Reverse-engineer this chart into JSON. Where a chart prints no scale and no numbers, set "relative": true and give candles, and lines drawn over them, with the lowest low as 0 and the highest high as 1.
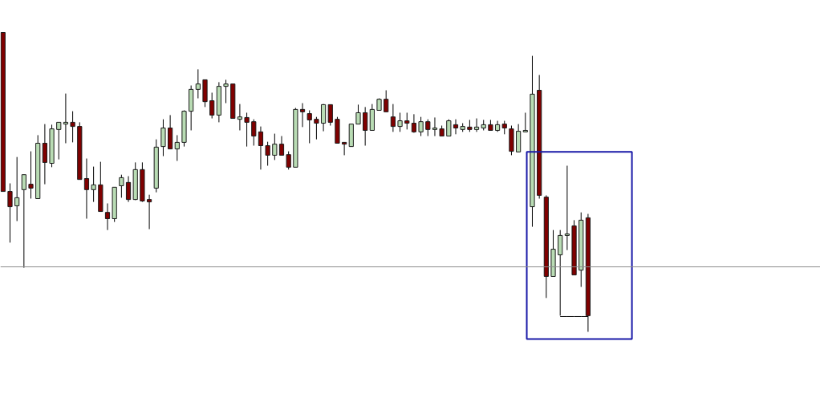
{
  "chart_data": {
    "type": "candlestick",
    "relative": true,
    "categories": [
      null,
      null,
      null,
      null,
      null,
      null,
      null,
      null,
      null,
      null,
      null,
      null,
      null,
      null,
      null,
      null,
      null,
      null,
      null,
      null,
      null,
      null,
      null,
      null,
      null,
      null,
      null,
      null,
      null,
      null,
      null,
      null,
      null,
      null,
      null,
      null,
      null,
      null,
      null,
      null,
      null,
      null,
      null,
      null,
      null,
      null,
      null,
      null,
      null,
      null,
      null,
      null,
      null,
      null,
      null,
      null,
      null,
      null,
      null,
      null,
      null,
      null,
      null,
      null,
      null,
      null,
      null,
      null,
      null,
      null,
      null,
      null,
      null,
      null,
      null,
      null,
      null,
      null,
      null,
      null,
      null,
      null,
      null,
      null,
      null
    ],
    "ohlc": [
      [
        1.0,
        1.0,
        0.469,
        0.469
      ],
      [
        0.469,
        0.496,
        0.298,
        0.418
      ],
      [
        0.421,
        0.584,
        0.37,
        0.448
      ],
      [
        0.475,
        0.525,
        0.214,
        0.525
      ],
      [
        0.493,
        0.603,
        0.445,
        0.48
      ],
      [
        0.445,
        0.657,
        0.445,
        0.63
      ],
      [
        0.63,
        0.694,
        0.493,
        0.566
      ],
      [
        0.563,
        0.692,
        0.55,
        0.678
      ],
      [
        0.676,
        0.7,
        0.576,
        0.7
      ],
      [
        0.694,
        0.796,
        0.63,
        0.7
      ],
      [
        0.7,
        0.737,
        0.633,
        0.686
      ],
      [
        0.686,
        0.7,
        0.509,
        0.509
      ],
      [
        0.512,
        0.579,
        0.378,
        0.475
      ],
      [
        0.475,
        0.552,
        0.434,
        0.491
      ],
      [
        0.491,
        0.568,
        0.402,
        0.402
      ],
      [
        0.399,
        0.429,
        0.34,
        0.378
      ],
      [
        0.378,
        0.483,
        0.367,
        0.483
      ],
      [
        0.488,
        0.525,
        0.448,
        0.515
      ],
      [
        0.499,
        0.52,
        0.434,
        0.442
      ],
      [
        0.442,
        0.566,
        0.44,
        0.542
      ],
      [
        0.542,
        0.566,
        0.434,
        0.437
      ],
      [
        0.442,
        0.458,
        0.343,
        0.434
      ],
      [
        0.48,
        0.643,
        0.466,
        0.617
      ],
      [
        0.619,
        0.71,
        0.587,
        0.681
      ],
      [
        0.681,
        0.724,
        0.611,
        0.611
      ],
      [
        0.611,
        0.657,
        0.571,
        0.633
      ],
      [
        0.633,
        0.74,
        0.619,
        0.737
      ],
      [
        0.737,
        0.823,
        0.673,
        0.81
      ],
      [
        0.81,
        0.877,
        0.78,
        0.828
      ],
      [
        0.842,
        0.842,
        0.751,
        0.769
      ],
      [
        0.772,
        0.799,
        0.713,
        0.724
      ],
      [
        0.724,
        0.834,
        0.7,
        0.82
      ],
      [
        0.82,
        0.842,
        0.764,
        0.828
      ],
      [
        0.828,
        0.828,
        0.713,
        0.713
      ],
      [
        0.71,
        0.761,
        0.673,
        0.718
      ],
      [
        0.716,
        0.732,
        0.619,
        0.7
      ],
      [
        0.702,
        0.71,
        0.622,
        0.654
      ],
      [
        0.668,
        0.686,
        0.542,
        0.622
      ],
      [
        0.622,
        0.635,
        0.555,
        0.59
      ],
      [
        0.59,
        0.662,
        0.574,
        0.627
      ],
      [
        0.627,
        0.654,
        0.59,
        0.59
      ],
      [
        0.592,
        0.603,
        0.542,
        0.55
      ],
      [
        0.55,
        0.748,
        0.55,
        0.743
      ],
      [
        0.743,
        0.764,
        0.684,
        0.735
      ],
      [
        0.729,
        0.74,
        0.63,
        0.708
      ],
      [
        0.71,
        0.718,
        0.643,
        0.697
      ],
      [
        0.697,
        0.761,
        0.67,
        0.759
      ],
      [
        0.759,
        0.759,
        0.689,
        0.7
      ],
      [
        0.71,
        0.718,
        0.63,
        0.63
      ],
      [
        0.633,
        0.633,
        0.59,
        0.627
      ],
      [
        0.619,
        0.694,
        0.619,
        0.694
      ],
      [
        0.694,
        0.759,
        0.694,
        0.732
      ],
      [
        0.732,
        0.751,
        0.622,
        0.673
      ],
      [
        0.673,
        0.761,
        0.673,
        0.743
      ],
      [
        0.74,
        0.78,
        0.74,
        0.777
      ],
      [
        0.777,
        0.807,
        0.735,
        0.735
      ],
      [
        0.718,
        0.761,
        0.668,
        0.686
      ],
      [
        0.686,
        0.732,
        0.668,
        0.705
      ],
      [
        0.705,
        0.732,
        0.676,
        0.697
      ],
      [
        0.697,
        0.727,
        0.665,
        0.668
      ],
      [
        0.668,
        0.718,
        0.654,
        0.702
      ],
      [
        0.702,
        0.71,
        0.654,
        0.676
      ],
      [
        0.676,
        0.716,
        0.654,
        0.681
      ],
      [
        0.678,
        0.689,
        0.654,
        0.654
      ],
      [
        0.654,
        0.71,
        0.654,
        0.705
      ],
      [
        0.692,
        0.71,
        0.66,
        0.681
      ],
      [
        0.676,
        0.697,
        0.668,
        0.686
      ],
      [
        0.684,
        0.708,
        0.668,
        0.676
      ],
      [
        0.676,
        0.713,
        0.668,
        0.684
      ],
      [
        0.681,
        0.708,
        0.673,
        0.692
      ],
      [
        0.692,
        0.708,
        0.673,
        0.673
      ],
      [
        0.673,
        0.705,
        0.668,
        0.692
      ],
      [
        0.694,
        0.705,
        0.66,
        0.681
      ],
      [
        0.678,
        0.689,
        0.59,
        0.603
      ],
      [
        0.601,
        0.694,
        0.601,
        0.67
      ],
      [
        0.668,
        0.732,
        0.668,
        0.673
      ],
      [
        0.418,
        0.922,
        0.351,
        0.794
      ],
      [
        0.807,
        0.858,
        0.445,
        0.456
      ],
      [
        0.45,
        0.456,
        0.113,
        0.185
      ],
      [
        0.185,
        0.34,
        0.185,
        0.276
      ],
      [
        0.257,
        0.34,
        0.054,
        0.322
      ],
      [
        0.322,
        0.555,
        0.273,
        0.327
      ],
      [
        0.354,
        0.373,
        0.19,
        0.19
      ],
      [
        0.206,
        0.399,
        0.15,
        0.373
      ],
      [
        0.381,
        0.394,
        0.0,
        0.054
      ]
    ],
    "colors": [
      "#800000",
      "#800000",
      "#b9dcb4",
      "#b9dcb4",
      "#800000",
      "#b9dcb4",
      "#800000",
      "#b9dcb4",
      "#b9dcb4",
      "#b9dcb4",
      "#800000",
      "#800000",
      "#800000",
      "#b9dcb4",
      "#800000",
      "#800000",
      "#b9dcb4",
      "#b9dcb4",
      "#800000",
      "#b9dcb4",
      "#800000",
      "#800000",
      "#b9dcb4",
      "#b9dcb4",
      "#800000",
      "#b9dcb4",
      "#b9dcb4",
      "#b9dcb4",
      "#b9dcb4",
      "#800000",
      "#800000",
      "#b9dcb4",
      "#b9dcb4",
      "#800000",
      "#b9dcb4",
      "#800000",
      "#800000",
      "#800000",
      "#800000",
      "#b9dcb4",
      "#800000",
      "#800000",
      "#b9dcb4",
      "#800000",
      "#800000",
      "#800000",
      "#b9dcb4",
      "#800000",
      "#800000",
      "#800000",
      "#b9dcb4",
      "#b9dcb4",
      "#800000",
      "#b9dcb4",
      "#b9dcb4",
      "#800000",
      "#800000",
      "#b9dcb4",
      "#800000",
      "#800000",
      "#b9dcb4",
      "#800000",
      "#b9dcb4",
      "#800000",
      "#b9dcb4",
      "#800000",
      "#b9dcb4",
      "#800000",
      "#b9dcb4",
      "#b9dcb4",
      "#800000",
      "#b9dcb4",
      "#800000",
      "#800000",
      "#b9dcb4",
      "#b9dcb4",
      "#b9dcb4",
      "#800000",
      "#800000",
      "#b9dcb4",
      "#b9dcb4",
      "#b9dcb4",
      "#800000",
      "#b9dcb4",
      "#800000"
    ],
    "series": [
      {
        "type": "line",
        "values": [
          null,
          null,
          null,
          null,
          null,
          null,
          null,
          null,
          null,
          null,
          null,
          null,
          null,
          null,
          null,
          null,
          null,
          null,
          null,
          null,
          null,
          null,
          null,
          null,
          null,
          null,
          null,
          null,
          null,
          null,
          null,
          null,
          null,
          null,
          null,
          null,
          null,
          null,
          null,
          null,
          null,
          null,
          null,
          null,
          null,
          null,
          null,
          null,
          null,
          null,
          null,
          null,
          null,
          null,
          null,
          null,
          null,
          null,
          null,
          null,
          null,
          null,
          null,
          null,
          null,
          null,
          null,
          null,
          null,
          null,
          null,
          null,
          null,
          null,
          null,
          null,
          null,
          null,
          null,
          null,
          0.051,
          0.051,
          0.051,
          0.051,
          0.051
        ],
        "color": "#000000"
      }
    ],
    "ref_lines": [
      {
        "axis": "y",
        "value": 0.217,
        "color": "#8c8c8c"
      }
    ]
  }
}
